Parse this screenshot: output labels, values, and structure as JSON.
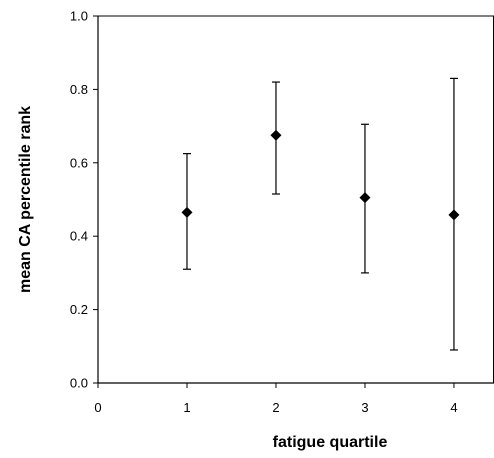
{
  "chart_data": {
    "type": "scatter",
    "title": "",
    "xlabel": "fatigue quartile",
    "ylabel": "mean CA percentile rank",
    "xlim": [
      0,
      4.45
    ],
    "ylim": [
      0.0,
      1.0
    ],
    "x_ticks": [
      0,
      1,
      2,
      3,
      4
    ],
    "x_tick_labels": [
      "0",
      "1",
      "2",
      "3",
      "4"
    ],
    "y_ticks": [
      0.0,
      0.2,
      0.4,
      0.6,
      0.8,
      1.0
    ],
    "y_tick_labels": [
      "0.0",
      "0.2",
      "0.4",
      "0.6",
      "0.8",
      "1.0"
    ],
    "grid": false,
    "legend": "none",
    "marker": "diamond",
    "color": "#000000",
    "points": [
      {
        "x": 1,
        "y": 0.465,
        "err_low": 0.31,
        "err_high": 0.625
      },
      {
        "x": 2,
        "y": 0.675,
        "err_low": 0.515,
        "err_high": 0.82
      },
      {
        "x": 3,
        "y": 0.505,
        "err_low": 0.3,
        "err_high": 0.705
      },
      {
        "x": 4,
        "y": 0.458,
        "err_low": 0.09,
        "err_high": 0.83
      }
    ]
  }
}
